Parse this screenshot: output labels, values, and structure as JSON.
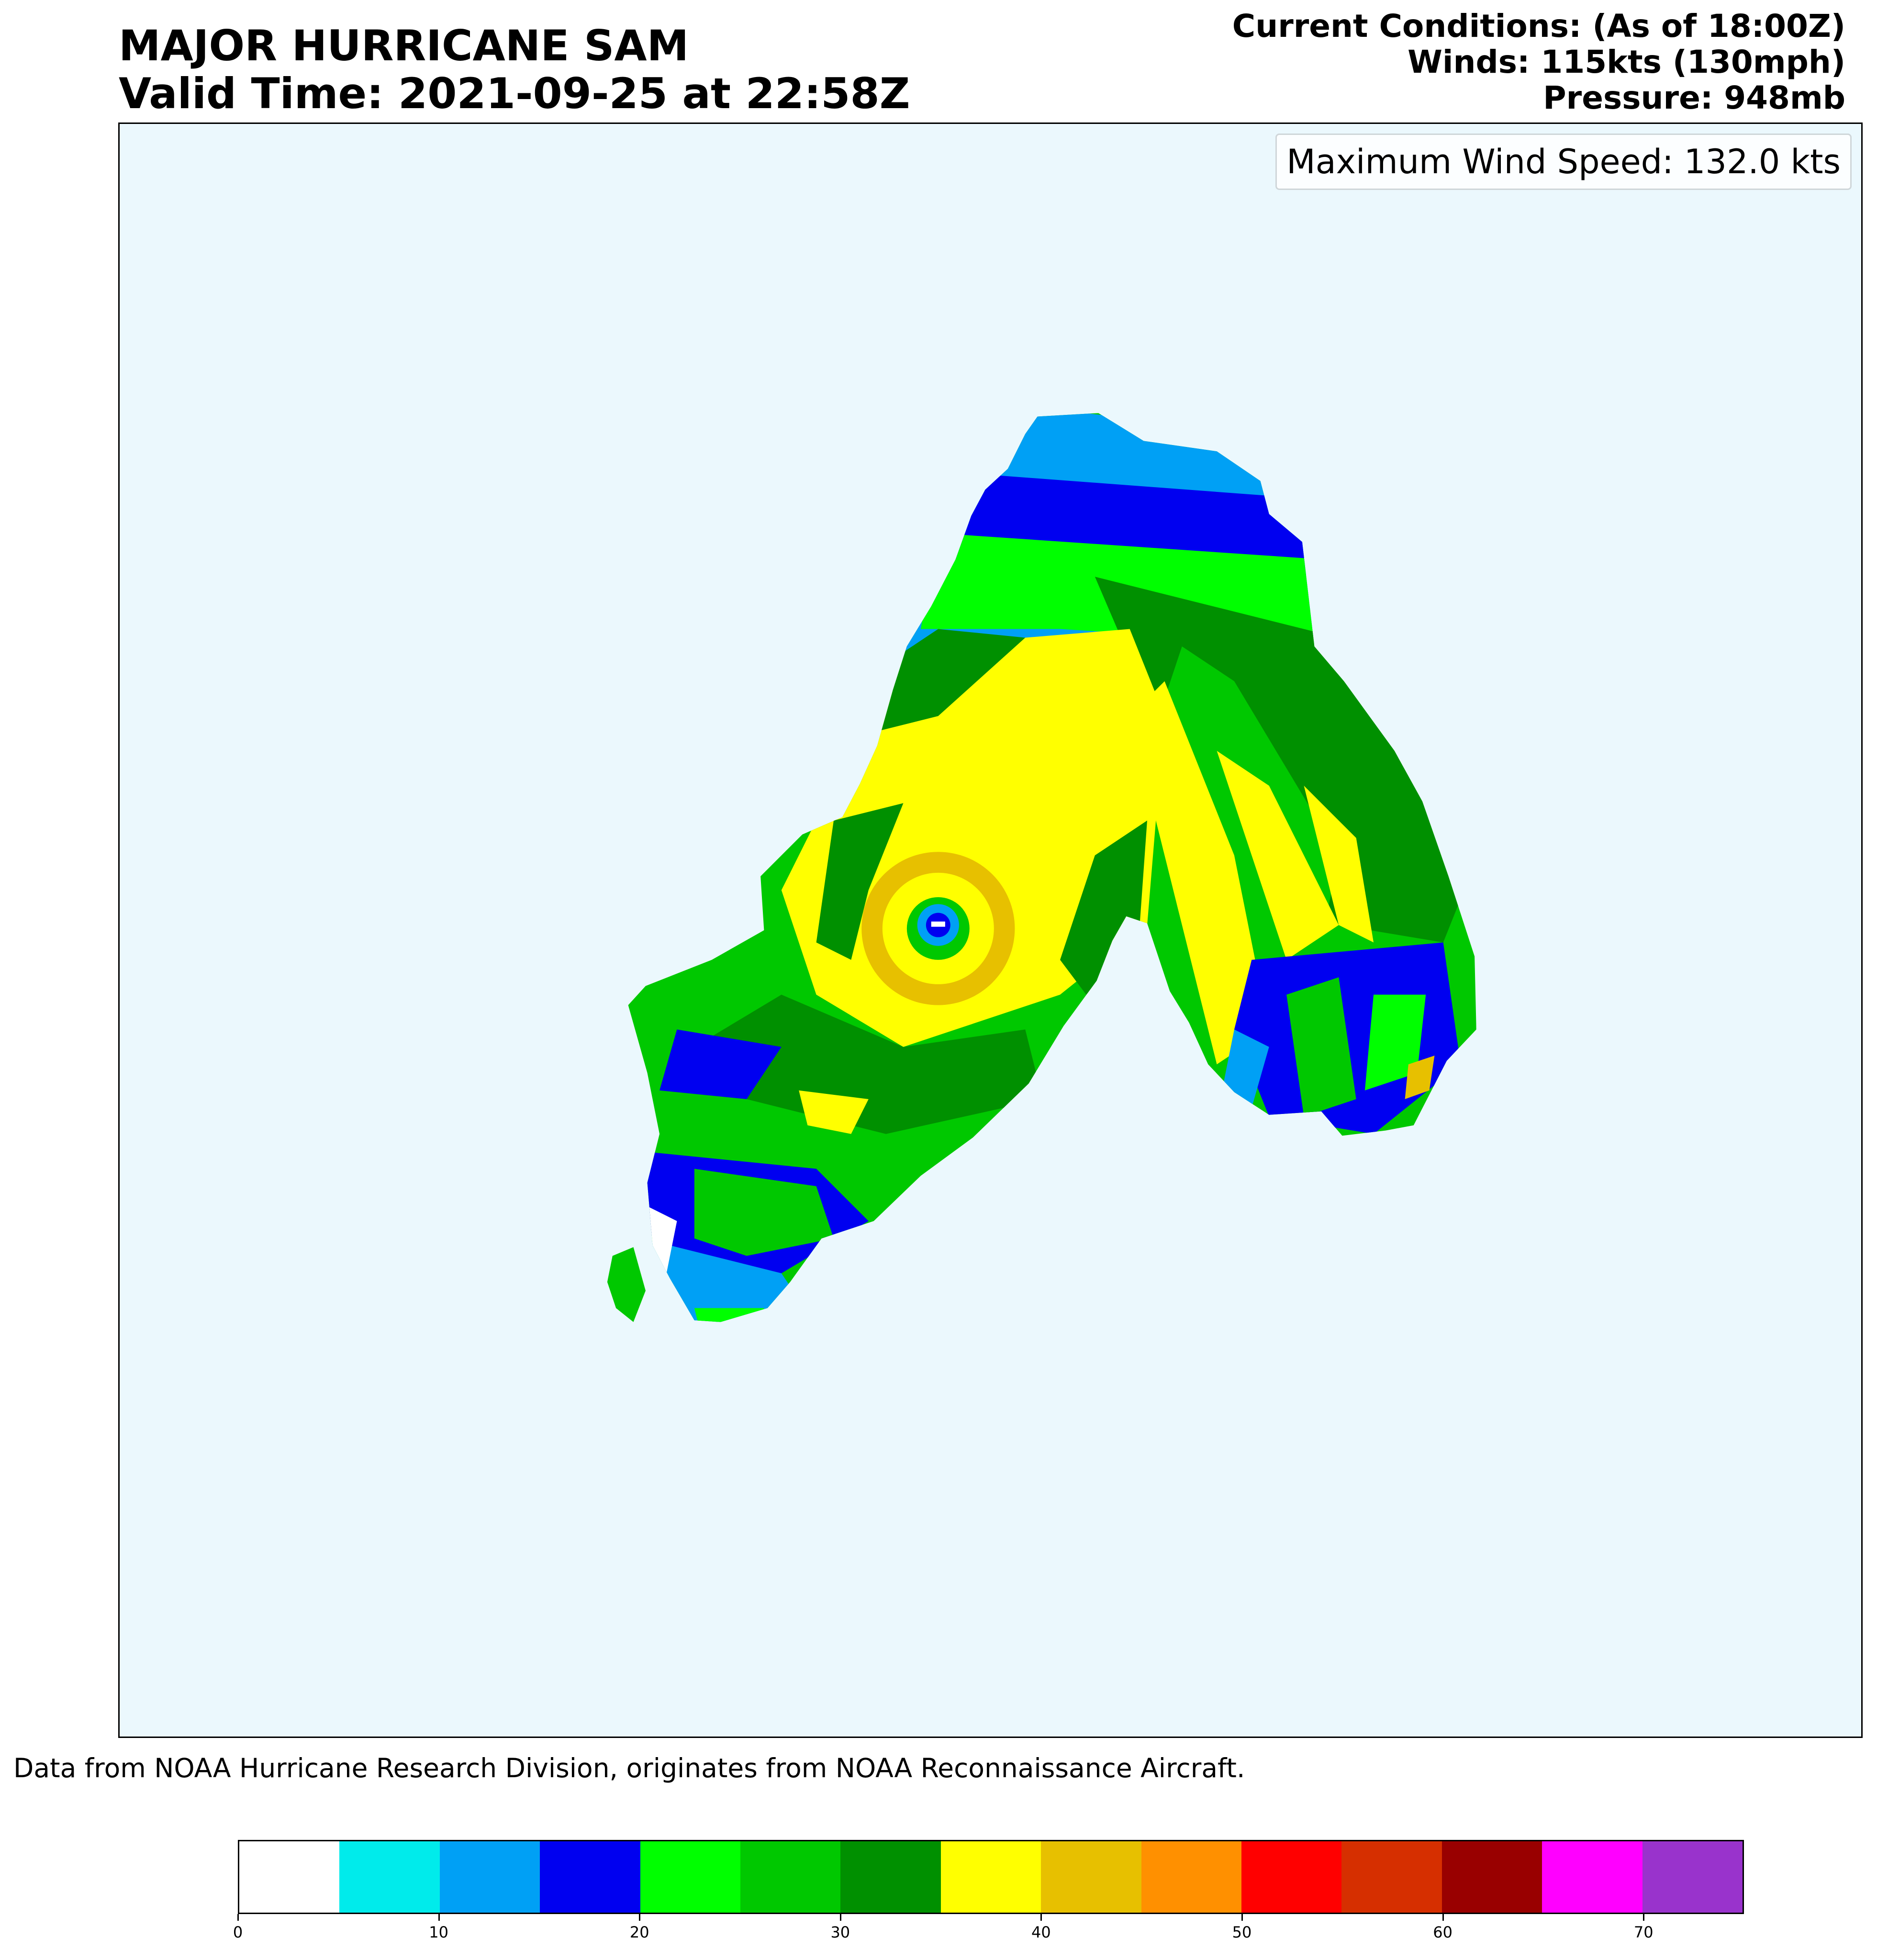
{
  "header": {
    "title_line1": "MAJOR HURRICANE SAM",
    "title_line2": "Valid Time: 2021-09-25 at 22:58Z",
    "conditions_line1": "Current Conditions: (As of 18:00Z)",
    "conditions_line2": "Winds: 115kts (130mph)",
    "conditions_line3": "Pressure:  948mb"
  },
  "legend": {
    "max_wind_text": "Maximum Wind Speed: 132.0 kts"
  },
  "footer": {
    "source_text": "Data from NOAA Hurricane Research Division, originates from NOAA Reconnaissance Aircraft."
  },
  "chart_data": {
    "type": "heatmap",
    "quantity": "wind speed",
    "units": "kts",
    "max_value": 132.0,
    "background_color": "#ebf8fd",
    "colorbar": {
      "range": [
        0,
        75
      ],
      "step": 5,
      "tick_values": [
        0,
        10,
        20,
        30,
        40,
        50,
        60,
        70
      ],
      "tick_labels": [
        "0",
        "10",
        "20",
        "30",
        "40",
        "50",
        "60",
        "70"
      ],
      "colors": [
        "#ffffff",
        "#00ebeb",
        "#00a0f5",
        "#0000f0",
        "#00ff00",
        "#00c800",
        "#009000",
        "#ffff00",
        "#e7c000",
        "#ff9000",
        "#ff0000",
        "#d62f00",
        "#990000",
        "#ff00ff",
        "#9933cc"
      ]
    },
    "legend_placement": "top-right",
    "grid": false
  }
}
